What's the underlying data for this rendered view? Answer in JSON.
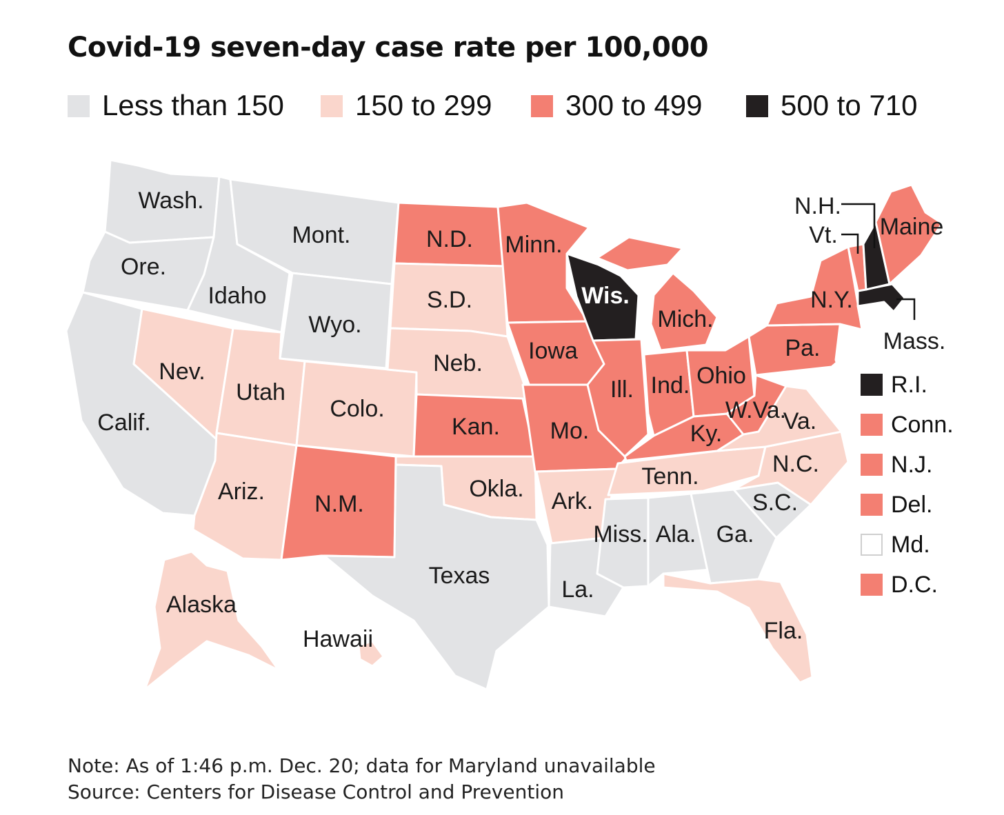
{
  "title": "Covid-19 seven-day case rate per 100,000",
  "colors": {
    "lt150": "#e2e3e5",
    "c150_299": "#fad6cc",
    "c300_499": "#f37f72",
    "c500_710": "#231f20",
    "unavailable": "#ffffff"
  },
  "legend": [
    {
      "label": "Less than 150",
      "color": "#e2e3e5"
    },
    {
      "label": "150 to 299",
      "color": "#fad6cc"
    },
    {
      "label": "300 to 499",
      "color": "#f37f72"
    },
    {
      "label": "500 to 710",
      "color": "#231f20"
    }
  ],
  "states": {
    "wa": {
      "label": "Wash.",
      "category": "Less than 150"
    },
    "or": {
      "label": "Ore.",
      "category": "Less than 150"
    },
    "ca": {
      "label": "Calif.",
      "category": "Less than 150"
    },
    "id": {
      "label": "Idaho",
      "category": "Less than 150"
    },
    "mt": {
      "label": "Mont.",
      "category": "Less than 150"
    },
    "wy": {
      "label": "Wyo.",
      "category": "Less than 150"
    },
    "nv": {
      "label": "Nev.",
      "category": "150 to 299"
    },
    "ut": {
      "label": "Utah",
      "category": "150 to 299"
    },
    "co": {
      "label": "Colo.",
      "category": "150 to 299"
    },
    "az": {
      "label": "Ariz.",
      "category": "150 to 299"
    },
    "nm": {
      "label": "N.M.",
      "category": "300 to 499"
    },
    "nd": {
      "label": "N.D.",
      "category": "300 to 499"
    },
    "sd": {
      "label": "S.D.",
      "category": "150 to 299"
    },
    "ne": {
      "label": "Neb.",
      "category": "150 to 299"
    },
    "ks": {
      "label": "Kan.",
      "category": "300 to 499"
    },
    "ok": {
      "label": "Okla.",
      "category": "150 to 299"
    },
    "tx": {
      "label": "Texas",
      "category": "Less than 150"
    },
    "mn": {
      "label": "Minn.",
      "category": "300 to 499"
    },
    "ia": {
      "label": "Iowa",
      "category": "300 to 499"
    },
    "mo": {
      "label": "Mo.",
      "category": "300 to 499"
    },
    "ar": {
      "label": "Ark.",
      "category": "150 to 299"
    },
    "la": {
      "label": "La.",
      "category": "Less than 150"
    },
    "wi": {
      "label": "Wis.",
      "category": "500 to 710"
    },
    "il": {
      "label": "Ill.",
      "category": "300 to 499"
    },
    "mi": {
      "label": "Mich.",
      "category": "300 to 499"
    },
    "in": {
      "label": "Ind.",
      "category": "300 to 499"
    },
    "oh": {
      "label": "Ohio",
      "category": "300 to 499"
    },
    "ky": {
      "label": "Ky.",
      "category": "300 to 499"
    },
    "tn": {
      "label": "Tenn.",
      "category": "150 to 299"
    },
    "ms": {
      "label": "Miss.",
      "category": "Less than 150"
    },
    "al": {
      "label": "Ala.",
      "category": "Less than 150"
    },
    "ga": {
      "label": "Ga.",
      "category": "Less than 150"
    },
    "fl": {
      "label": "Fla.",
      "category": "150 to 299"
    },
    "sc": {
      "label": "S.C.",
      "category": "Less than 150"
    },
    "nc": {
      "label": "N.C.",
      "category": "150 to 299"
    },
    "va": {
      "label": "Va.",
      "category": "150 to 299"
    },
    "wv": {
      "label": "W.Va.",
      "category": "300 to 499"
    },
    "pa": {
      "label": "Pa.",
      "category": "300 to 499"
    },
    "ny": {
      "label": "N.Y.",
      "category": "300 to 499"
    },
    "vt": {
      "label": "Vt.",
      "category": "300 to 499"
    },
    "nh": {
      "label": "N.H.",
      "category": "500 to 710"
    },
    "me": {
      "label": "Maine",
      "category": "300 to 499"
    },
    "ma": {
      "label": "Mass.",
      "category": "500 to 710"
    },
    "ak": {
      "label": "Alaska",
      "category": "150 to 299"
    },
    "hi": {
      "label": "Hawaii",
      "category": "150 to 299"
    }
  },
  "small_states": [
    {
      "label": "R.I.",
      "category": "500 to 710",
      "color": "#231f20"
    },
    {
      "label": "Conn.",
      "category": "300 to 499",
      "color": "#f37f72"
    },
    {
      "label": "N.J.",
      "category": "300 to 499",
      "color": "#f37f72"
    },
    {
      "label": "Del.",
      "category": "300 to 499",
      "color": "#f37f72"
    },
    {
      "label": "Md.",
      "category": "unavailable",
      "color": "#ffffff"
    },
    {
      "label": "D.C.",
      "category": "300 to 499",
      "color": "#f37f72"
    }
  ],
  "note": "Note: As of 1:46 p.m. Dec. 20; data for Maryland unavailable",
  "source": "Source: Centers for Disease Control and Prevention"
}
